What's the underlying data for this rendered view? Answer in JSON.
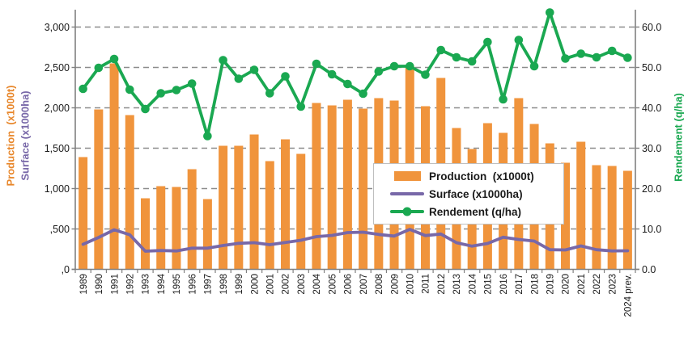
{
  "chart_data": {
    "type": "combo-bar-line",
    "categories": [
      "1989",
      "1990",
      "1991",
      "1992",
      "1993",
      "1994",
      "1995",
      "1996",
      "1997",
      "1998",
      "1999",
      "2000",
      "2001",
      "2002",
      "2003",
      "2004",
      "2005",
      "2006",
      "2007",
      "2008",
      "2009",
      "2010",
      "2011",
      "2012",
      "2013",
      "2014",
      "2015",
      "2016",
      "2017",
      "2018",
      "2019",
      "2020",
      "2021",
      "2022",
      "2023",
      "2024 prev."
    ],
    "series": [
      {
        "name": "Production  (x1000t)",
        "type": "bar",
        "axis": "left",
        "color": "#F0943C",
        "values": [
          1390,
          1980,
          2550,
          1910,
          880,
          1030,
          1020,
          1240,
          870,
          1530,
          1530,
          1670,
          1340,
          1610,
          1430,
          2060,
          2030,
          2100,
          1990,
          2120,
          2090,
          2520,
          2020,
          2370,
          1750,
          1490,
          1810,
          1690,
          2120,
          1800,
          1560,
          1320,
          1580,
          1290,
          1280,
          1220
        ]
      },
      {
        "name": "Surface (x1000ha)",
        "type": "line",
        "axis": "left",
        "color": "#7868A8",
        "values": [
          310,
          395,
          490,
          428,
          225,
          233,
          228,
          262,
          262,
          295,
          322,
          330,
          305,
          333,
          360,
          405,
          420,
          455,
          460,
          432,
          412,
          495,
          418,
          437,
          330,
          287,
          320,
          398,
          370,
          350,
          243,
          240,
          290,
          243,
          228,
          230
        ]
      },
      {
        "name": "Rendement (q/ha)",
        "type": "line",
        "marker": "circle",
        "axis": "right",
        "color": "#1AA851",
        "values": [
          44.7,
          49.9,
          52.1,
          44.5,
          39.7,
          43.6,
          44.4,
          46.0,
          33.0,
          51.8,
          47.2,
          49.4,
          43.6,
          47.8,
          40.3,
          50.9,
          48.3,
          45.9,
          43.5,
          49.0,
          50.3,
          50.3,
          48.2,
          54.3,
          52.5,
          51.5,
          56.3,
          42.1,
          56.8,
          50.3,
          63.6,
          52.2,
          53.4,
          52.5,
          54.1,
          52.4
        ]
      }
    ],
    "left_axis": {
      "titles": [
        "Production  (x1000t)",
        "Surface (x1000ha)"
      ],
      "tick_labels": [
        "3,000",
        "2,500",
        "2,000",
        "1,500",
        "1,000",
        ",500",
        ",0"
      ],
      "tick_values": [
        3000,
        2500,
        2000,
        1500,
        1000,
        500,
        0
      ],
      "range": [
        0,
        3000
      ]
    },
    "right_axis": {
      "title": "Rendement (q/ha)",
      "tick_labels": [
        "60.0",
        "50.0",
        "40.0",
        "30.0",
        "20.0",
        "10.0",
        "0.0"
      ],
      "tick_values": [
        60,
        50,
        40,
        30,
        20,
        10,
        0
      ],
      "range": [
        0,
        60
      ]
    },
    "grid": {
      "horizontal": true,
      "style": "dashed",
      "color": "#8C8C8C"
    },
    "legend": {
      "position": "center-right",
      "entries": [
        {
          "label": "Production  (x1000t)",
          "swatch": "bar",
          "color": "#F0943C"
        },
        {
          "label": "Surface (x1000ha)",
          "swatch": "line",
          "color": "#7868A8"
        },
        {
          "label": "Rendement (q/ha)",
          "swatch": "line-marker",
          "color": "#1AA851"
        }
      ]
    },
    "colors": {
      "axis_text": "#1a1a1a",
      "axis_line": "#808080"
    }
  }
}
